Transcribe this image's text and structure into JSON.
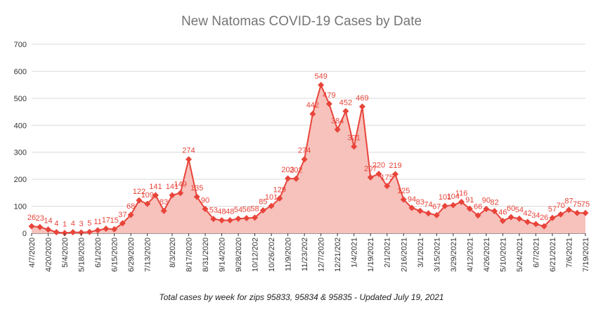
{
  "chart_data": {
    "type": "area",
    "title": "New Natomas COVID-19 Cases by Date",
    "caption": "Total cases by week for zips 95833, 95834 & 95835 - Updated July 19, 2021",
    "xlabel": "",
    "ylabel": "",
    "ylim": [
      0,
      700
    ],
    "yticks": [
      0,
      100,
      200,
      300,
      400,
      500,
      600,
      700
    ],
    "grid": true,
    "legend": "none",
    "colors": {
      "line": "#e8443a",
      "fill": "#f7c1bc",
      "grid": "#d9d9d9",
      "axis": "#333333"
    },
    "x": [
      "4/7/2020",
      "4/13/2020",
      "4/20/2020",
      "4/27/2020",
      "5/4/2020",
      "5/11/2020",
      "5/18/2020",
      "5/25/2020",
      "6/1/2020",
      "6/8/2020",
      "6/15/2020",
      "6/22/2020",
      "6/29/2020",
      "7/6/2020",
      "7/13/2020",
      "7/20/2020",
      "7/27/2020",
      "8/3/2020",
      "8/10/2020",
      "8/17/2020",
      "8/24/2020",
      "8/31/2020",
      "9/7/2020",
      "9/14/2020",
      "9/21/2020",
      "9/28/2020",
      "10/5/2020",
      "10/12/2020",
      "10/19/2020",
      "10/26/2020",
      "11/2/2020",
      "11/9/2020",
      "11/16/2020",
      "11/23/2020",
      "11/30/2020",
      "12/7/2020",
      "12/14/2020",
      "12/21/2020",
      "12/28/2020",
      "1/4/2021",
      "1/11/2021",
      "1/19/2021",
      "1/25/2021",
      "2/1/2021",
      "2/8/2021",
      "2/16/2021",
      "2/22/2021",
      "3/1/2021",
      "3/8/2021",
      "3/15/2021",
      "3/22/2021",
      "3/29/2021",
      "4/5/2021",
      "4/12/2021",
      "4/19/2021",
      "4/26/2021",
      "5/3/2021",
      "5/10/2021",
      "5/17/2021",
      "5/24/2021",
      "5/31/2021",
      "6/7/2021",
      "6/14/2021",
      "6/21/2021",
      "6/28/2021",
      "7/6/2021",
      "7/12/2021",
      "7/19/2021"
    ],
    "tick_labels": [
      "4/7/2020",
      "4/20/2020",
      "5/4/2020",
      "5/18/2020",
      "6/1/2020",
      "6/15/2020",
      "6/29/2020",
      "7/13/2020",
      "8/3/2020",
      "8/17/2020",
      "8/31/2020",
      "9/14/2020",
      "9/28/2020",
      "10/12/202",
      "10/26/202",
      "11/9/2020",
      "11/23/202",
      "12/7/2020",
      "12/21/202",
      "1/4/2021",
      "1/19/2021",
      "2/1/2021",
      "2/16/2021",
      "3/1/2021",
      "3/15/2021",
      "3/29/2021",
      "4/12/2021",
      "4/26/2021",
      "5/10/2021",
      "5/24/2021",
      "6/7/2021",
      "6/21/2021",
      "7/6/2021",
      "7/19/2021"
    ],
    "tick_indices": [
      0,
      2,
      4,
      6,
      8,
      10,
      12,
      14,
      17,
      19,
      21,
      23,
      25,
      27,
      29,
      31,
      33,
      35,
      37,
      39,
      41,
      43,
      45,
      47,
      49,
      51,
      53,
      55,
      57,
      59,
      61,
      63,
      65,
      67
    ],
    "values": [
      26,
      23,
      14,
      4,
      1,
      4,
      3,
      5,
      11,
      17,
      15,
      37,
      68,
      122,
      109,
      141,
      83,
      141,
      149,
      274,
      135,
      90,
      53,
      48,
      48,
      54,
      56,
      58,
      85,
      101,
      129,
      203,
      202,
      274,
      442,
      549,
      479,
      384,
      452,
      321,
      469,
      207,
      220,
      175,
      219,
      125,
      94,
      83,
      74,
      67,
      101,
      104,
      116,
      91,
      66,
      90,
      82,
      46,
      60,
      54,
      42,
      34,
      26,
      57,
      70,
      87,
      75,
      75
    ],
    "data_labels": [
      "26",
      "23",
      "14",
      "4",
      "1",
      "4",
      "3",
      "5",
      "11",
      "17",
      "15",
      "37",
      "68",
      "122",
      "109",
      "141",
      "83",
      "141",
      "149",
      "274",
      "135",
      "90",
      "53",
      "48",
      "48",
      "54",
      "56",
      "58",
      "85",
      "101",
      "129",
      "203",
      "202",
      "274",
      "442",
      "549",
      "479",
      "384",
      "452",
      "321",
      "469",
      "207",
      "220",
      "175",
      "219",
      "125",
      "94",
      "83",
      "74",
      "67",
      "101",
      "104",
      "116",
      "91",
      "66",
      "90",
      "82",
      "46",
      "60",
      "54",
      "42",
      "34",
      "26",
      "57",
      "70",
      "87",
      "75",
      "75"
    ]
  }
}
